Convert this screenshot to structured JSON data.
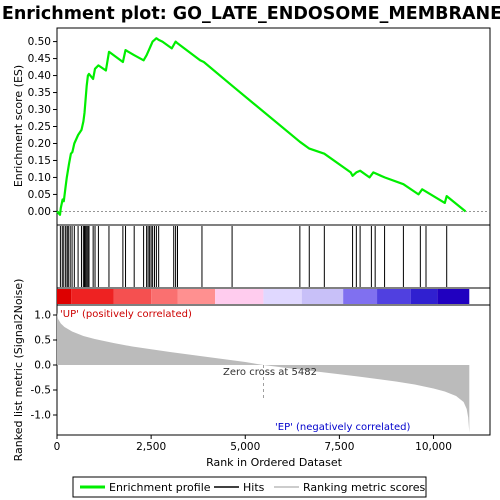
{
  "chart_data": [
    {
      "type": "line",
      "panel": "enrichment",
      "title": "Enrichment plot: GO_LATE_ENDOSOME_MEMBRANE",
      "ylabel": "Enrichment score (ES)",
      "xlim": [
        0,
        11500
      ],
      "ylim": [
        -0.04,
        0.54
      ],
      "yticks": [
        0.0,
        0.05,
        0.1,
        0.15,
        0.2,
        0.25,
        0.3,
        0.35,
        0.4,
        0.45,
        0.5
      ],
      "ytick_labels": [
        "0.00",
        "0.05",
        "0.10",
        "0.15",
        "0.20",
        "0.25",
        "0.30",
        "0.35",
        "0.40",
        "0.45",
        "0.50"
      ],
      "grid": false,
      "line_color": "#00ee00",
      "series": [
        {
          "name": "Enrichment profile",
          "x": [
            0,
            80,
            100,
            150,
            180,
            230,
            260,
            290,
            320,
            370,
            410,
            460,
            560,
            650,
            700,
            730,
            760,
            790,
            820,
            850,
            960,
            1010,
            1100,
            1300,
            1380,
            1750,
            1820,
            2050,
            2300,
            2380,
            2420,
            2460,
            2500,
            2540,
            2590,
            2640,
            2700,
            2800,
            3050,
            3100,
            3150,
            3200,
            3800,
            3900,
            4650,
            6450,
            6700,
            7100,
            7800,
            7850,
            7950,
            8050,
            8300,
            8400,
            8700,
            9200,
            9600,
            9700,
            10300,
            10350,
            10850
          ],
          "y": [
            0.0,
            -0.01,
            0.01,
            0.035,
            0.03,
            0.075,
            0.1,
            0.12,
            0.14,
            0.17,
            0.175,
            0.2,
            0.225,
            0.24,
            0.265,
            0.29,
            0.33,
            0.37,
            0.4,
            0.405,
            0.39,
            0.42,
            0.43,
            0.415,
            0.47,
            0.44,
            0.475,
            0.46,
            0.445,
            0.46,
            0.47,
            0.48,
            0.49,
            0.5,
            0.505,
            0.51,
            0.505,
            0.5,
            0.48,
            0.49,
            0.5,
            0.495,
            0.445,
            0.44,
            0.37,
            0.205,
            0.185,
            0.17,
            0.115,
            0.105,
            0.115,
            0.12,
            0.1,
            0.115,
            0.1,
            0.08,
            0.05,
            0.065,
            0.025,
            0.045,
            0.0
          ]
        }
      ]
    },
    {
      "type": "table",
      "panel": "hits",
      "hit_positions": [
        90,
        140,
        180,
        230,
        270,
        300,
        350,
        400,
        460,
        560,
        650,
        700,
        730,
        760,
        790,
        820,
        850,
        960,
        1010,
        1100,
        1380,
        1750,
        1820,
        2050,
        2300,
        2380,
        2420,
        2460,
        2500,
        2540,
        2590,
        2640,
        2700,
        3100,
        3150,
        3200,
        3850,
        4650,
        6450,
        6700,
        7100,
        7850,
        7950,
        8050,
        8350,
        8450,
        8700,
        9200,
        9650,
        9800,
        10350
      ]
    },
    {
      "type": "heatmap",
      "panel": "rank-colorbar",
      "x_max": 10950,
      "segments": [
        {
          "x_end": 380,
          "color": "#dd0000"
        },
        {
          "x_end": 1500,
          "color": "#ee2222"
        },
        {
          "x_end": 2500,
          "color": "#f55050"
        },
        {
          "x_end": 3200,
          "color": "#fa7070"
        },
        {
          "x_end": 4200,
          "color": "#ff9090"
        },
        {
          "x_end": 5482,
          "color": "#ffccee"
        },
        {
          "x_end": 6500,
          "color": "#e0d8ff"
        },
        {
          "x_end": 7600,
          "color": "#c8c0f8"
        },
        {
          "x_end": 8500,
          "color": "#8070f0"
        },
        {
          "x_end": 9400,
          "color": "#5040e0"
        },
        {
          "x_end": 10100,
          "color": "#3020d0"
        },
        {
          "x_end": 10950,
          "color": "#2000c0"
        }
      ]
    },
    {
      "type": "area",
      "panel": "ranked-metric",
      "xlabel": "Rank in Ordered Dataset",
      "ylabel": "Ranked list metric (Signal2Noise)",
      "xlim": [
        0,
        11500
      ],
      "ylim": [
        -1.4,
        1.2
      ],
      "xticks": [
        0,
        2500,
        5000,
        7500,
        10000
      ],
      "xtick_labels": [
        "0",
        "2,500",
        "5,000",
        "7,500",
        "10,000"
      ],
      "yticks": [
        -1.0,
        -0.5,
        0.0,
        0.5,
        1.0
      ],
      "ytick_labels": [
        "-1.0",
        "-0.5",
        "0.0",
        "0.5",
        "1.0"
      ],
      "fill_color": "#bbbbbb",
      "x": [
        0,
        30,
        100,
        200,
        400,
        700,
        1000,
        1500,
        2000,
        3000,
        4000,
        5000,
        5482,
        6000,
        7000,
        8000,
        9000,
        9500,
        10000,
        10300,
        10600,
        10800,
        10880,
        10920,
        10950
      ],
      "y": [
        1.05,
        0.92,
        0.83,
        0.76,
        0.67,
        0.58,
        0.52,
        0.44,
        0.37,
        0.26,
        0.16,
        0.06,
        0.0,
        -0.05,
        -0.14,
        -0.23,
        -0.33,
        -0.39,
        -0.47,
        -0.53,
        -0.62,
        -0.74,
        -0.88,
        -1.05,
        -1.35
      ],
      "zero_cross_rank": 5482,
      "annotations": {
        "zero_cross": "Zero cross at 5482",
        "positive": "'UP' (positively correlated)",
        "negative": "'EP' (negatively correlated)"
      }
    }
  ],
  "legend": {
    "placement": "bottom",
    "items": [
      {
        "label": "Enrichment profile",
        "color": "#00ee00"
      },
      {
        "label": "Hits",
        "color": "#000000"
      },
      {
        "label": "Ranking metric scores",
        "color": "#bbbbbb"
      }
    ]
  }
}
